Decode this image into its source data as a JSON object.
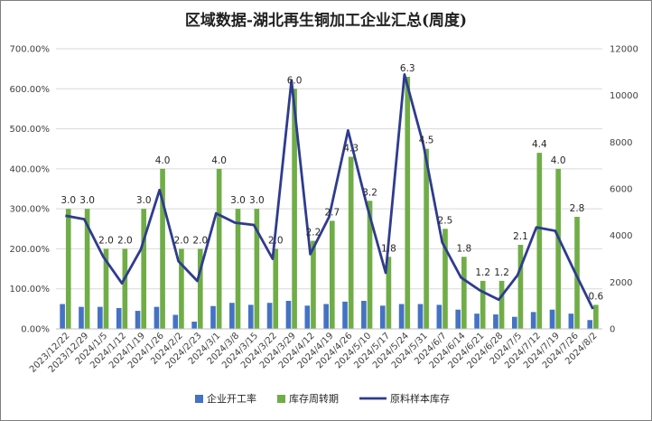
{
  "title": "区域数据-湖北再生铜加工企业汇总(周度)",
  "colors": {
    "bar1": "#4472c4",
    "bar2": "#70ad47",
    "line": "#2f3b8f",
    "grid": "#d9d9d9"
  },
  "chart_data": {
    "type": "bar+line",
    "title": "区域数据-湖北再生铜加工企业汇总(周度)",
    "categories": [
      "2023/12/22",
      "2023/12/29",
      "2024/1/5",
      "2024/1/12",
      "2024/1/19",
      "2024/1/26",
      "2024/2/2",
      "2024/2/23",
      "2024/3/1",
      "2024/3/8",
      "2024/3/15",
      "2024/3/22",
      "2024/3/29",
      "2024/4/12",
      "2024/4/19",
      "2024/4/26",
      "2024/5/10",
      "2024/5/17",
      "2024/5/24",
      "2024/5/31",
      "2024/6/7",
      "2024/6/14",
      "2024/6/21",
      "2024/6/28",
      "2024/7/5",
      "2024/7/12",
      "2024/7/19",
      "2024/7/26",
      "2024/8/2"
    ],
    "y_left": {
      "min": 0,
      "max": 700,
      "step": 100,
      "format": "percent2"
    },
    "y_right": {
      "min": 0,
      "max": 12000,
      "step": 2000
    },
    "legend_position": "bottom",
    "series": [
      {
        "name": "企业开工率",
        "type": "bar",
        "axis": "left",
        "values": [
          62,
          55,
          55,
          52,
          45,
          55,
          35,
          18,
          57,
          65,
          60,
          65,
          70,
          58,
          62,
          68,
          70,
          58,
          62,
          62,
          60,
          48,
          38,
          36,
          30,
          42,
          48,
          38,
          22
        ]
      },
      {
        "name": "库存周转期",
        "type": "bar",
        "axis": "left",
        "scale": 100,
        "values": [
          3.0,
          3.0,
          2.0,
          2.0,
          3.0,
          4.0,
          2.0,
          2.0,
          4.0,
          3.0,
          3.0,
          2.0,
          6.0,
          2.2,
          2.7,
          4.3,
          3.2,
          1.8,
          6.3,
          4.5,
          2.5,
          1.8,
          1.2,
          1.2,
          2.1,
          4.4,
          4.0,
          2.8,
          0.6
        ]
      },
      {
        "name": "原料样本库存",
        "type": "line",
        "axis": "right",
        "values": [
          4850,
          4700,
          3100,
          1950,
          3400,
          5950,
          2900,
          2050,
          4950,
          4550,
          4450,
          3000,
          10650,
          3200,
          4800,
          8500,
          5300,
          2400,
          10900,
          7900,
          3700,
          2200,
          1650,
          1250,
          2300,
          4350,
          4200,
          2500,
          850
        ]
      }
    ]
  }
}
